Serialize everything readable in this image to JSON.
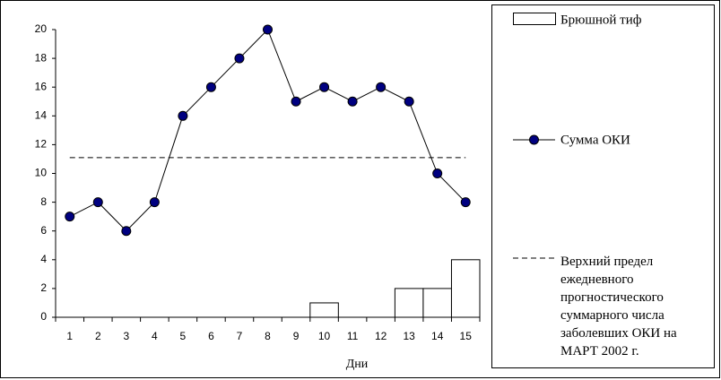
{
  "chart_data": {
    "type": "bar_line",
    "categories": [
      "1",
      "2",
      "3",
      "4",
      "5",
      "6",
      "7",
      "8",
      "9",
      "10",
      "11",
      "12",
      "13",
      "14",
      "15"
    ],
    "series": [
      {
        "name": "Брюшной тиф",
        "type": "bar",
        "color": "#ffffff",
        "values": [
          0,
          0,
          0,
          0,
          0,
          0,
          0,
          0,
          0,
          1,
          0,
          0,
          2,
          2,
          4
        ]
      },
      {
        "name": "Сумма ОКИ",
        "type": "line",
        "color": "#000080",
        "values": [
          7,
          8,
          6,
          8,
          14,
          16,
          18,
          20,
          15,
          16,
          15,
          16,
          15,
          10,
          8
        ]
      }
    ],
    "reference_line": {
      "name": "Верхний предел ежедневного прогностического суммарного числа заболевших ОКИ на МАРТ 2002 г.",
      "value": 11.1
    },
    "x_label": "Дни",
    "ylim": [
      0,
      20
    ],
    "yticks": [
      0,
      2,
      4,
      6,
      8,
      10,
      12,
      14,
      16,
      18,
      20
    ]
  }
}
